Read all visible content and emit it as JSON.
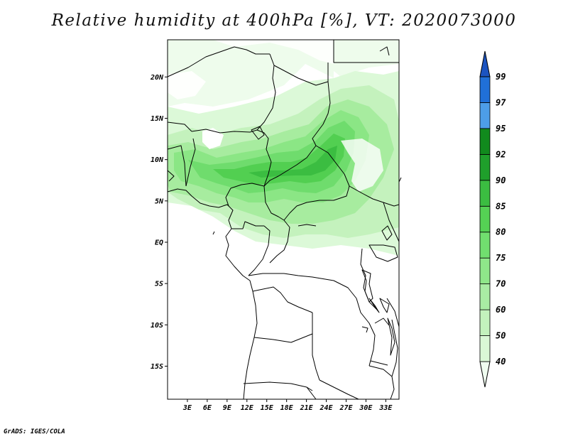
{
  "title": "Relative humidity at 400hPa [%], VT: 2020073000",
  "credit": "GrADS: IGES/COLA",
  "map": {
    "lon_range": [
      0,
      35
    ],
    "lat_range": [
      -19,
      24.5
    ],
    "lat_ticks": [
      "20N",
      "15N",
      "10N",
      "5N",
      "EQ",
      "5S",
      "10S",
      "15S"
    ],
    "lon_ticks": [
      "3E",
      "6E",
      "9E",
      "12E",
      "15E",
      "18E",
      "21E",
      "24E",
      "27E",
      "30E",
      "33E"
    ],
    "field_palette": [
      "#ffffff",
      "#e8fbe4",
      "#c8f5c0",
      "#a8efa0",
      "#8ce887",
      "#6bdd6b",
      "#4fd053",
      "#31b83e",
      "#1a9c2a"
    ]
  },
  "colorbar": {
    "levels": [
      "40",
      "50",
      "60",
      "70",
      "75",
      "80",
      "85",
      "90",
      "92",
      "95",
      "97",
      "99"
    ],
    "colors": [
      "#f0fdf0",
      "#daf8d6",
      "#c3f2bd",
      "#a9eca4",
      "#8fe78a",
      "#71de6f",
      "#55d154",
      "#3bbd41",
      "#1f9f2b",
      "#118a1d",
      "#4d9de8",
      "#2070d8",
      "#1c54c0"
    ]
  }
}
